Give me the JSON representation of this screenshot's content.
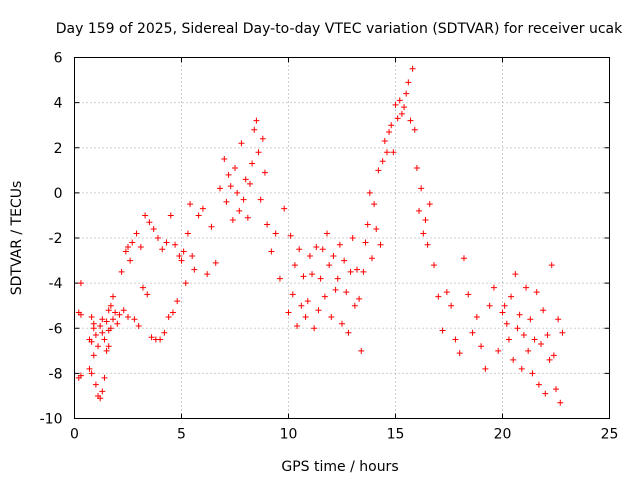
{
  "chart_data": {
    "type": "scatter",
    "title": "Day 159 of 2025, Sidereal Day-to-day VTEC variation (SDTVAR) for receiver ucak",
    "xlabel": "GPS time / hours",
    "ylabel": "SDTVAR / TECUs",
    "xlim": [
      0,
      25
    ],
    "ylim": [
      -10,
      6
    ],
    "xticks": [
      0,
      5,
      10,
      15,
      20,
      25
    ],
    "yticks": [
      -10,
      -8,
      -6,
      -4,
      -2,
      0,
      2,
      4,
      6
    ],
    "grid": true,
    "marker": "+",
    "color": "#ff0000",
    "series": [
      {
        "name": "SDTVAR",
        "x": [
          0.2,
          0.2,
          0.3,
          0.3,
          0.3,
          0.7,
          0.7,
          0.8,
          0.8,
          0.8,
          0.9,
          0.9,
          0.9,
          1.0,
          1.0,
          1.1,
          1.1,
          1.2,
          1.2,
          1.3,
          1.3,
          1.3,
          1.4,
          1.4,
          1.5,
          1.5,
          1.6,
          1.6,
          1.6,
          1.7,
          1.7,
          1.8,
          1.8,
          1.9,
          2.0,
          2.1,
          2.2,
          2.3,
          2.4,
          2.5,
          2.5,
          2.6,
          2.7,
          2.8,
          2.9,
          3.0,
          3.1,
          3.2,
          3.3,
          3.4,
          3.5,
          3.6,
          3.7,
          3.8,
          3.9,
          4.0,
          4.1,
          4.2,
          4.3,
          4.4,
          4.5,
          4.6,
          4.7,
          4.8,
          4.9,
          5.0,
          5.1,
          5.2,
          5.3,
          5.4,
          5.5,
          5.6,
          5.8,
          6.0,
          6.2,
          6.4,
          6.6,
          6.8,
          7.0,
          7.1,
          7.2,
          7.3,
          7.4,
          7.5,
          7.6,
          7.7,
          7.8,
          7.9,
          8.0,
          8.1,
          8.2,
          8.3,
          8.4,
          8.5,
          8.6,
          8.7,
          8.8,
          8.9,
          9.0,
          9.2,
          9.4,
          9.6,
          9.8,
          10.0,
          10.1,
          10.2,
          10.3,
          10.4,
          10.5,
          10.6,
          10.7,
          10.8,
          10.9,
          11.0,
          11.1,
          11.2,
          11.3,
          11.4,
          11.5,
          11.6,
          11.7,
          11.8,
          11.9,
          12.0,
          12.1,
          12.2,
          12.3,
          12.4,
          12.5,
          12.6,
          12.7,
          12.8,
          12.9,
          13.0,
          13.1,
          13.2,
          13.3,
          13.4,
          13.5,
          13.6,
          13.7,
          13.8,
          13.9,
          14.0,
          14.1,
          14.2,
          14.3,
          14.4,
          14.5,
          14.6,
          14.7,
          14.8,
          14.9,
          15.0,
          15.1,
          15.2,
          15.3,
          15.4,
          15.5,
          15.6,
          15.7,
          15.8,
          15.9,
          16.0,
          16.1,
          16.2,
          16.3,
          16.4,
          16.5,
          16.6,
          16.8,
          17.0,
          17.2,
          17.4,
          17.6,
          17.8,
          18.0,
          18.2,
          18.4,
          18.6,
          18.8,
          19.0,
          19.2,
          19.4,
          19.6,
          19.8,
          20.0,
          20.1,
          20.2,
          20.3,
          20.4,
          20.5,
          20.6,
          20.7,
          20.8,
          20.9,
          21.0,
          21.1,
          21.2,
          21.3,
          21.4,
          21.5,
          21.6,
          21.7,
          21.8,
          21.9,
          22.0,
          22.1,
          22.2,
          22.3,
          22.4,
          22.5,
          22.6,
          22.7,
          22.8
        ],
        "y": [
          -5.3,
          -8.2,
          -4.0,
          -5.4,
          -8.1,
          -6.5,
          -7.8,
          -5.5,
          -6.6,
          -8.0,
          -6.0,
          -7.2,
          -5.8,
          -6.3,
          -8.5,
          -6.8,
          -9.0,
          -5.9,
          -9.1,
          -6.2,
          -8.8,
          -5.6,
          -6.5,
          -8.2,
          -5.7,
          -7.0,
          -6.1,
          -5.2,
          -6.8,
          -5.0,
          -6.0,
          -4.6,
          -5.6,
          -5.3,
          -5.8,
          -5.4,
          -3.5,
          -5.2,
          -2.6,
          -2.4,
          -5.5,
          -3.0,
          -2.2,
          -5.6,
          -1.8,
          -5.9,
          -2.4,
          -4.2,
          -1.0,
          -4.5,
          -1.3,
          -6.4,
          -1.6,
          -6.5,
          -2.0,
          -6.5,
          -2.5,
          -6.2,
          -2.2,
          -5.5,
          -1.0,
          -5.3,
          -2.3,
          -4.8,
          -2.8,
          -3.0,
          -2.6,
          -4.0,
          -1.8,
          -0.5,
          -2.8,
          -3.4,
          -1.0,
          -0.7,
          -3.6,
          -1.5,
          -3.1,
          0.2,
          1.5,
          -0.4,
          0.8,
          0.3,
          -1.2,
          1.1,
          0.0,
          -0.8,
          2.2,
          -0.3,
          0.6,
          -1.1,
          0.4,
          1.3,
          2.8,
          3.2,
          1.8,
          -0.3,
          2.4,
          0.9,
          -1.4,
          -2.6,
          -1.8,
          -3.8,
          -0.7,
          -5.3,
          -1.9,
          -4.5,
          -3.2,
          -5.9,
          -2.5,
          -5.0,
          -3.7,
          -5.5,
          -4.8,
          -2.8,
          -3.6,
          -6.0,
          -2.4,
          -5.2,
          -3.8,
          -2.5,
          -4.6,
          -1.8,
          -3.2,
          -5.5,
          -2.8,
          -4.3,
          -3.8,
          -2.3,
          -5.8,
          -3.0,
          -4.4,
          -6.2,
          -3.5,
          -2.0,
          -5.0,
          -3.4,
          -4.7,
          -7.0,
          -3.5,
          -2.2,
          -1.4,
          0.0,
          -2.9,
          -0.5,
          -1.6,
          1.0,
          -2.3,
          1.4,
          2.3,
          1.8,
          2.7,
          3.0,
          1.8,
          3.9,
          3.3,
          4.1,
          3.5,
          3.8,
          4.4,
          4.9,
          3.2,
          5.5,
          2.8,
          1.1,
          -0.8,
          0.2,
          -1.8,
          -1.2,
          -2.3,
          -0.5,
          -3.2,
          -4.6,
          -6.1,
          -4.4,
          -5.0,
          -6.5,
          -7.1,
          -2.9,
          -4.5,
          -6.2,
          -5.5,
          -6.8,
          -7.8,
          -5.0,
          -4.2,
          -7.0,
          -5.3,
          -5.0,
          -5.8,
          -6.5,
          -4.6,
          -7.4,
          -3.6,
          -6.0,
          -5.4,
          -7.8,
          -6.3,
          -4.2,
          -7.0,
          -5.6,
          -8.0,
          -6.5,
          -4.4,
          -8.5,
          -6.7,
          -5.2,
          -8.9,
          -6.3,
          -7.4,
          -3.2,
          -7.2,
          -8.7,
          -5.6,
          -9.3,
          -6.2
        ]
      }
    ]
  }
}
